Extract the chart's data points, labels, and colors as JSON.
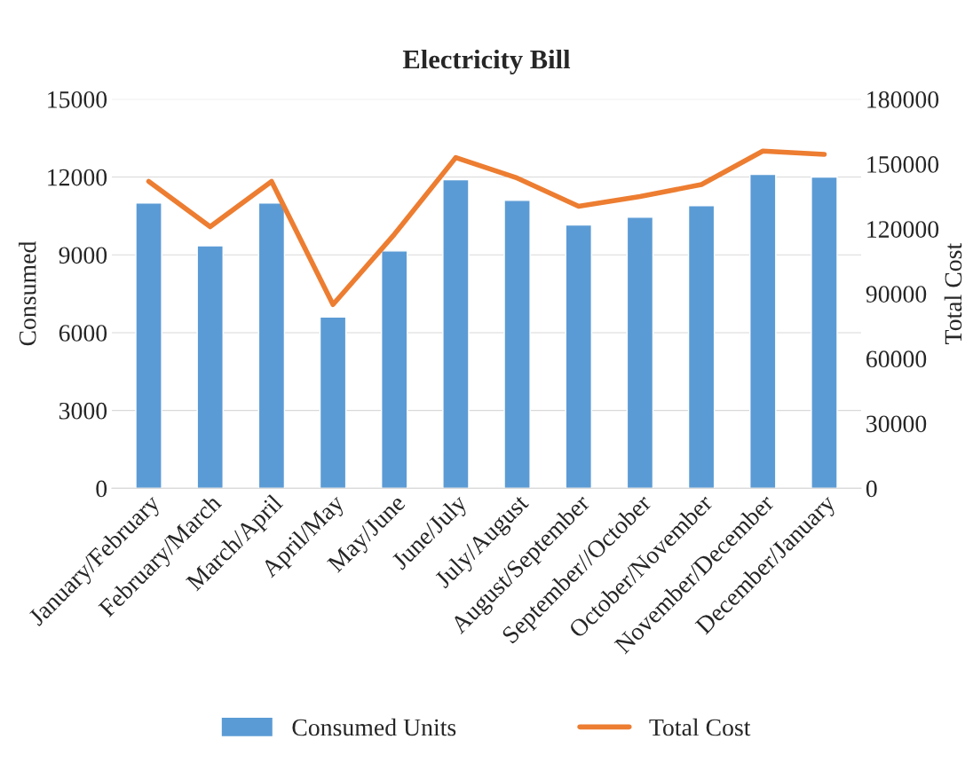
{
  "chart_data": {
    "type": "bar",
    "title": "Electricity Bill",
    "ylabel": "Consumed",
    "y2label": "Total Cost",
    "categories": [
      "January/February",
      "February/March",
      "March/April",
      "April/May",
      "May/June",
      "June/July",
      "July/August",
      "August/September",
      "September//October",
      "October/November",
      "November/December",
      "December/January"
    ],
    "series": [
      {
        "name": "Consumed Units",
        "color": "#5b9bd5",
        "values": [
          11000,
          9350,
          11000,
          6600,
          9150,
          11900,
          11100,
          10150,
          10450,
          10900,
          12100,
          12000
        ]
      },
      {
        "name": "Total Cost",
        "type": "line",
        "axis": "y2",
        "color": "#ed7d31",
        "values": [
          142000,
          121000,
          142000,
          85000,
          117500,
          153000,
          143500,
          130500,
          135000,
          140500,
          156000,
          154500
        ]
      }
    ],
    "ylim": [
      0,
      15000
    ],
    "yticks": [
      0,
      3000,
      6000,
      9000,
      12000,
      15000
    ],
    "y2lim": [
      0,
      180000
    ],
    "y2ticks": [
      0,
      30000,
      60000,
      90000,
      120000,
      150000,
      180000
    ],
    "grid": "y",
    "legend": "bottom",
    "marker": "none",
    "line_style": "solid"
  }
}
